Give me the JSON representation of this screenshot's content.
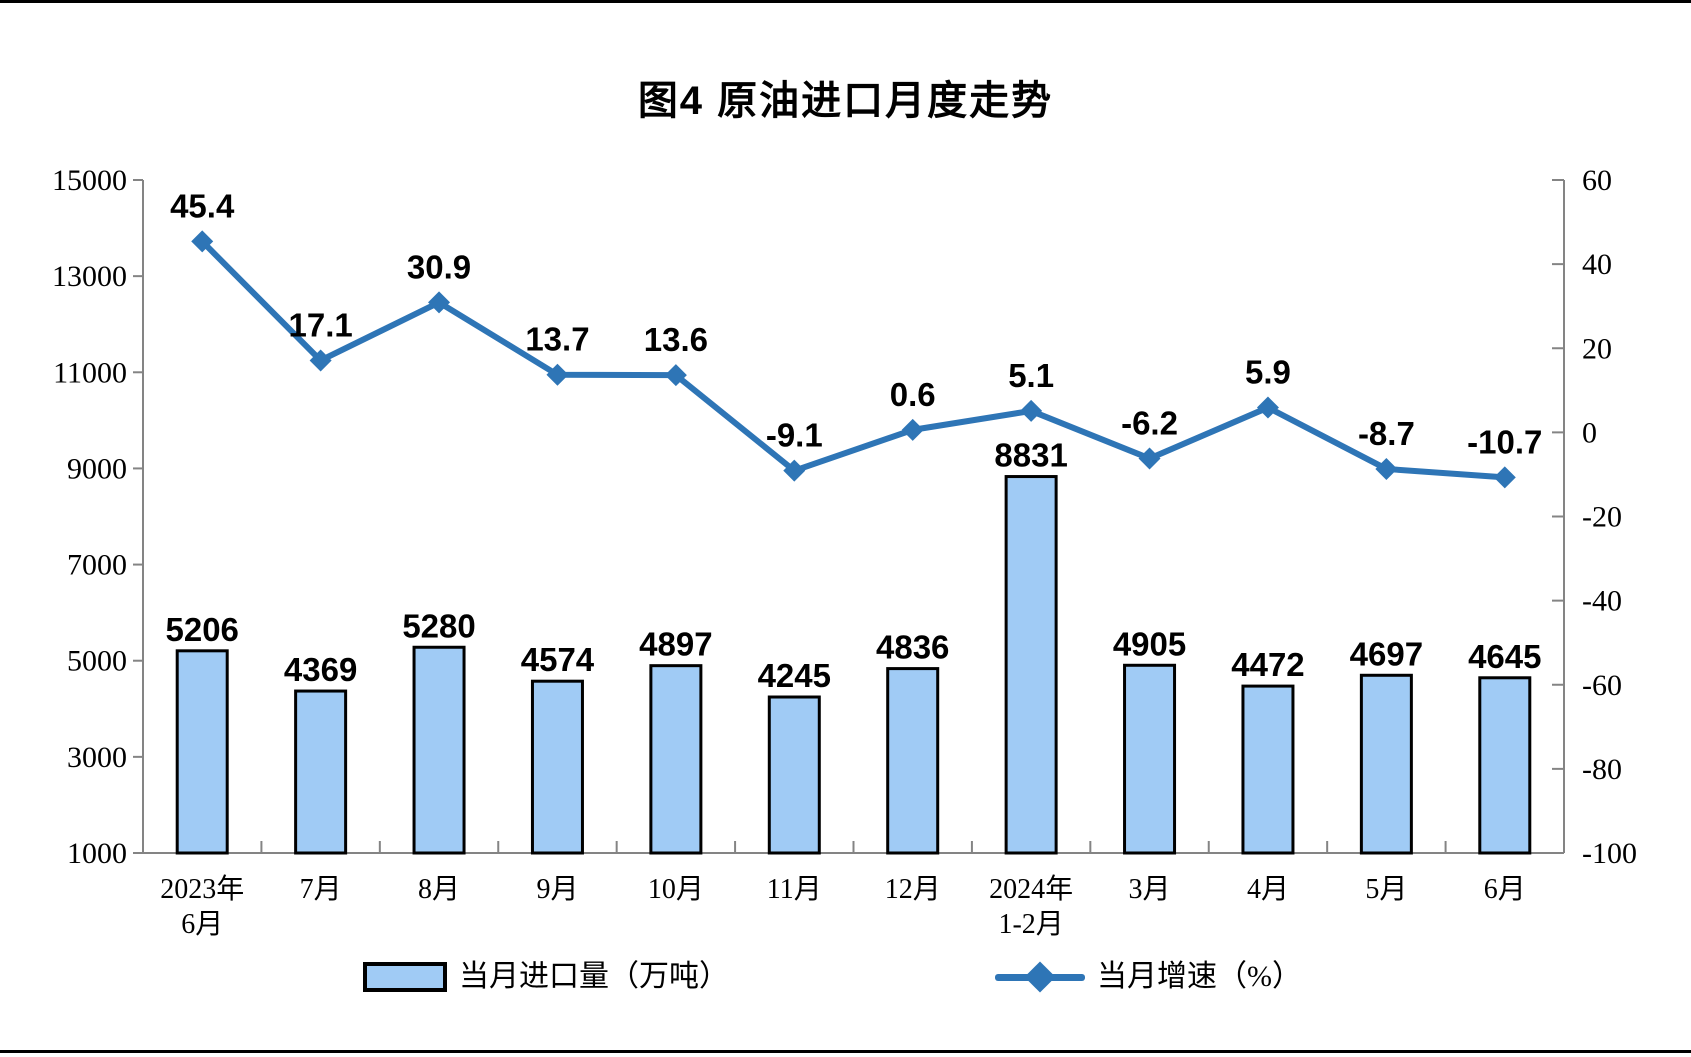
{
  "chart_data": {
    "type": "combo",
    "title": "图4 原油进口月度走势",
    "categories": [
      [
        "2023年",
        "6月"
      ],
      [
        "7月"
      ],
      [
        "8月"
      ],
      [
        "9月"
      ],
      [
        "10月"
      ],
      [
        "11月"
      ],
      [
        "12月"
      ],
      [
        "2024年",
        "1-2月"
      ],
      [
        "3月"
      ],
      [
        "4月"
      ],
      [
        "5月"
      ],
      [
        "6月"
      ]
    ],
    "series": [
      {
        "name": "当月进口量（万吨）",
        "type": "bar",
        "axis": "left",
        "values": [
          5206,
          4369,
          5280,
          4574,
          4897,
          4245,
          4836,
          8831,
          4905,
          4472,
          4697,
          4645
        ]
      },
      {
        "name": "当月增速（%）",
        "type": "line",
        "axis": "right",
        "marker": "diamond",
        "values": [
          45.4,
          17.1,
          30.9,
          13.7,
          13.6,
          -9.1,
          0.6,
          5.1,
          -6.2,
          5.9,
          -8.7,
          -10.7
        ]
      }
    ],
    "left_axis": {
      "min": 1000,
      "max": 15000,
      "step": 2000,
      "tick_labels": [
        "15000",
        "13000",
        "11000",
        "9000",
        "7000",
        "5000",
        "3000",
        "1000"
      ]
    },
    "right_axis": {
      "min": -100,
      "max": 60,
      "step": 20,
      "tick_labels": [
        "60",
        "40",
        "20",
        "0",
        "-20",
        "-40",
        "-60",
        "-80",
        "-100"
      ]
    },
    "grid": false,
    "legend_position": "bottom",
    "colors": {
      "bar_fill": "#A0CBF5",
      "bar_border": "#000000",
      "line": "#2E75B6",
      "axis": "#848484",
      "label_text": "#000000"
    }
  }
}
